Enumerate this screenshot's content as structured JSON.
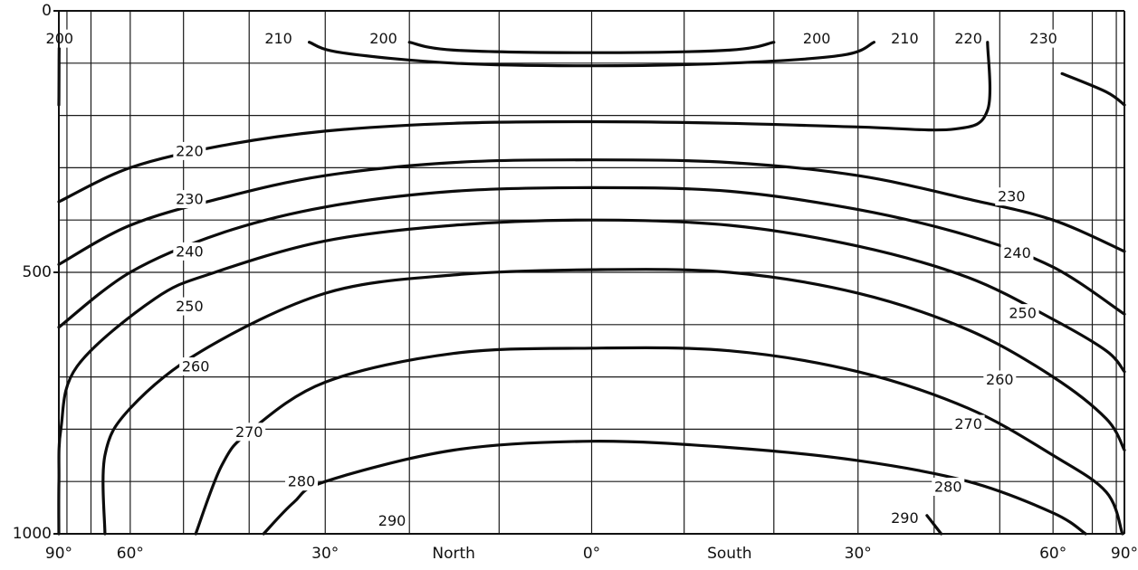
{
  "chart_data": {
    "type": "contour",
    "x_axis": {
      "tick_labels": [
        {
          "text": "90°",
          "x": -90
        },
        {
          "text": "60°",
          "x": -60
        },
        {
          "text": "30°",
          "x": -30
        },
        {
          "text": "North",
          "x": -15
        },
        {
          "text": "0°",
          "x": 0
        },
        {
          "text": "South",
          "x": 15
        },
        {
          "text": "30°",
          "x": 30
        },
        {
          "text": "60°",
          "x": 60
        },
        {
          "text": "90°",
          "x": 90
        }
      ],
      "range": [
        -90,
        90
      ],
      "scale": "sine of latitude"
    },
    "y_axis": {
      "tick_labels": [
        {
          "text": "0",
          "y": 0
        },
        {
          "text": "500",
          "y": 500
        },
        {
          "text": "1000",
          "y": 1000
        }
      ],
      "range": [
        0,
        1000
      ],
      "inverted": true
    },
    "grid": true,
    "contours": [
      {
        "level": "200",
        "segments": [
          [
            [
              -90,
              180
            ],
            [
              -89,
              160
            ],
            [
              -88.5,
              120
            ],
            [
              -88,
              60
            ]
          ],
          [
            [
              -20,
              60
            ],
            [
              -15,
              75
            ],
            [
              0,
              80
            ],
            [
              15,
              75
            ],
            [
              20,
              60
            ]
          ]
        ]
      },
      {
        "level": "210",
        "segments": [
          [
            [
              -32,
              60
            ],
            [
              -28,
              80
            ],
            [
              -15,
              100
            ],
            [
              0,
              105
            ],
            [
              15,
              100
            ],
            [
              28,
              85
            ],
            [
              32,
              60
            ]
          ]
        ]
      },
      {
        "level": "220",
        "segments": [
          [
            [
              -90,
              365
            ],
            [
              -60,
              300
            ],
            [
              -44,
              258
            ],
            [
              -30,
              230
            ],
            [
              -15,
              215
            ],
            [
              0,
              212
            ],
            [
              15,
              215
            ],
            [
              30,
              222
            ],
            [
              43,
              226
            ],
            [
              48,
              190
            ],
            [
              48,
              60
            ]
          ]
        ]
      },
      {
        "level": "230",
        "segments": [
          [
            [
              -90,
              485
            ],
            [
              -60,
              410
            ],
            [
              -44,
              358
            ],
            [
              -30,
              315
            ],
            [
              -15,
              290
            ],
            [
              0,
              285
            ],
            [
              15,
              290
            ],
            [
              30,
              315
            ],
            [
              45,
              360
            ],
            [
              60,
              400
            ],
            [
              90,
              460
            ]
          ],
          [
            [
              62,
              120
            ],
            [
              75,
              155
            ],
            [
              90,
              180
            ]
          ]
        ]
      },
      {
        "level": "240",
        "segments": [
          [
            [
              -90,
              605
            ],
            [
              -60,
              500
            ],
            [
              -44,
              425
            ],
            [
              -30,
              375
            ],
            [
              -15,
              345
            ],
            [
              0,
              338
            ],
            [
              15,
              345
            ],
            [
              30,
              380
            ],
            [
              45,
              430
            ],
            [
              60,
              490
            ],
            [
              90,
              580
            ]
          ]
        ]
      },
      {
        "level": "250",
        "segments": [
          [
            [
              -90,
              1000
            ],
            [
              -89,
              900
            ],
            [
              -85,
              800
            ],
            [
              -75,
              680
            ],
            [
              -55,
              550
            ],
            [
              -45,
              500
            ],
            [
              -30,
              440
            ],
            [
              -15,
              410
            ],
            [
              0,
              400
            ],
            [
              15,
              410
            ],
            [
              30,
              450
            ],
            [
              45,
              510
            ],
            [
              60,
              590
            ],
            [
              75,
              650
            ],
            [
              90,
              690
            ]
          ]
        ]
      },
      {
        "level": "260",
        "segments": [
          [
            [
              -66,
              1000
            ],
            [
              -66,
              850
            ],
            [
              -60,
              760
            ],
            [
              -47,
              650
            ],
            [
              -30,
              540
            ],
            [
              -15,
              505
            ],
            [
              0,
              495
            ],
            [
              15,
              500
            ],
            [
              30,
              540
            ],
            [
              45,
              610
            ],
            [
              60,
              700
            ],
            [
              75,
              780
            ],
            [
              90,
              840
            ]
          ]
        ]
      },
      {
        "level": "270",
        "segments": [
          [
            [
              -48,
              1000
            ],
            [
              -44,
              870
            ],
            [
              -40,
              805
            ],
            [
              -30,
              710
            ],
            [
              -15,
              655
            ],
            [
              0,
              645
            ],
            [
              15,
              650
            ],
            [
              30,
              690
            ],
            [
              45,
              760
            ],
            [
              60,
              850
            ],
            [
              75,
              920
            ],
            [
              85,
              1000
            ]
          ]
        ]
      },
      {
        "level": "280",
        "segments": [
          [
            [
              -38,
              1000
            ],
            [
              -34,
              940
            ],
            [
              -30,
              900
            ],
            [
              -15,
              840
            ],
            [
              0,
              823
            ],
            [
              15,
              835
            ],
            [
              30,
              860
            ],
            [
              45,
              900
            ],
            [
              60,
              960
            ],
            [
              68,
              1000
            ]
          ]
        ]
      },
      {
        "level": "290",
        "segments": [
          [
            [
              41,
              1000
            ],
            [
              39,
              965
            ]
          ]
        ]
      }
    ],
    "contour_labels": [
      {
        "text": "200",
        "x": -87,
        "y": 53
      },
      {
        "text": "210",
        "x": -36,
        "y": 53
      },
      {
        "text": "200",
        "x": -23,
        "y": 53
      },
      {
        "text": "200",
        "x": 25,
        "y": 53
      },
      {
        "text": "210",
        "x": 36,
        "y": 53
      },
      {
        "text": "220",
        "x": 45,
        "y": 53
      },
      {
        "text": "230",
        "x": 58,
        "y": 53
      },
      {
        "text": "220",
        "x": -49,
        "y": 268
      },
      {
        "text": "230",
        "x": -49,
        "y": 360
      },
      {
        "text": "230",
        "x": 52,
        "y": 355
      },
      {
        "text": "240",
        "x": -49,
        "y": 460
      },
      {
        "text": "240",
        "x": 53,
        "y": 463
      },
      {
        "text": "250",
        "x": -49,
        "y": 565
      },
      {
        "text": "250",
        "x": 54,
        "y": 578
      },
      {
        "text": "260",
        "x": -48,
        "y": 680
      },
      {
        "text": "260",
        "x": 50,
        "y": 705
      },
      {
        "text": "270",
        "x": -40,
        "y": 805
      },
      {
        "text": "270",
        "x": 45,
        "y": 790
      },
      {
        "text": "280",
        "x": -33,
        "y": 900
      },
      {
        "text": "280",
        "x": 42,
        "y": 910
      },
      {
        "text": "290",
        "x": -22,
        "y": 975
      },
      {
        "text": "290",
        "x": 36,
        "y": 970
      }
    ]
  }
}
